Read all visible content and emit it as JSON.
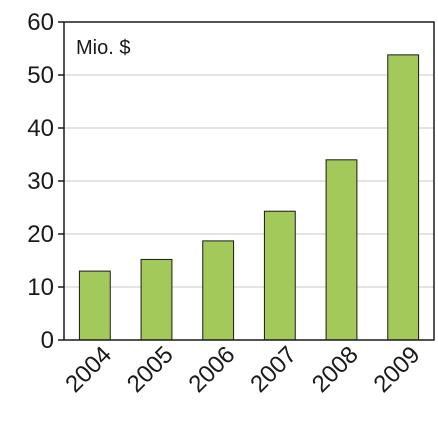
{
  "chart_data": {
    "type": "bar",
    "categories": [
      "2004",
      "2005",
      "2006",
      "2007",
      "2008",
      "2009"
    ],
    "values": [
      13,
      15.2,
      18.7,
      24.3,
      34,
      53.8
    ],
    "unit_label": "Mio. $",
    "xlabel": "",
    "ylabel": "",
    "ylim": [
      0,
      60
    ],
    "yticks": [
      0,
      10,
      20,
      30,
      40,
      50,
      60
    ],
    "grid": true,
    "legend": "none",
    "colors": {
      "bar": "#a3c95a",
      "bar_stroke": "#1a1a1a",
      "grid": "#c8c8c8",
      "axis": "#1a1a1a"
    }
  }
}
